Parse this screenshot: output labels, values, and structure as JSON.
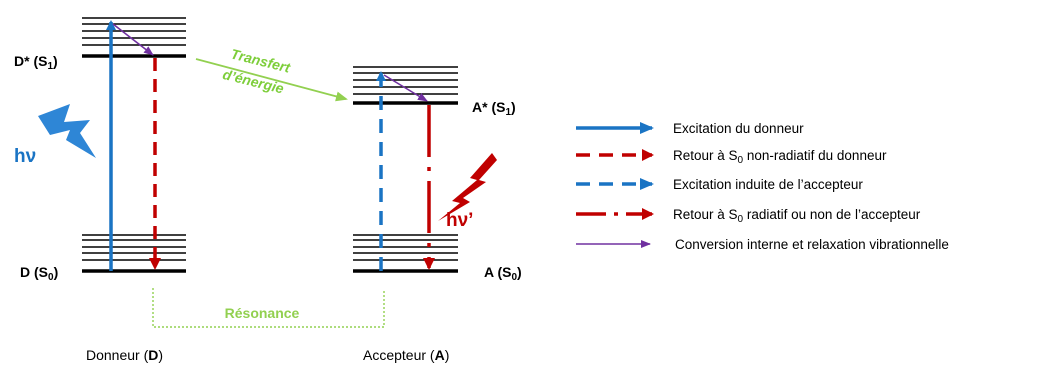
{
  "colors": {
    "blue": "#1a74c4",
    "red": "#c00000",
    "purple": "#7030a0",
    "green": "#92d050",
    "black": "#000000"
  },
  "donor": {
    "excited_label": {
      "main": "D* (S",
      "sub": "1",
      "end": ")"
    },
    "ground_label": {
      "main": "D (S",
      "sub": "0",
      "end": ")"
    },
    "caption": {
      "pre": "Donneur (",
      "bold": "D",
      "post": ")"
    }
  },
  "acceptor": {
    "excited_label": {
      "main": "A* (S",
      "sub": "1",
      "end": ")"
    },
    "ground_label": {
      "main": "A (S",
      "sub": "0",
      "end": ")"
    },
    "caption": {
      "pre": "Accepteur (",
      "bold": "A",
      "post": ")"
    }
  },
  "transfer_label_1": "Transfert",
  "transfer_label_2": "d’énergie",
  "resonance_label": "Résonance",
  "hv_absorb": "hν",
  "hv_emit": "hν’",
  "legend": {
    "item1": "Excitation du donneur",
    "item2": {
      "pre": "Retour à S",
      "sub": "0",
      "post": " non-radiatif du donneur"
    },
    "item3": "Excitation induite de l’accepteur",
    "item4": {
      "pre": "Retour à S",
      "sub": "0",
      "post": " radiatif ou non de l’accepteur"
    },
    "item5": "Conversion interne et relaxation vibrationnelle"
  },
  "icons": {
    "absorb": "lightning-bolt-icon",
    "emit": "lightning-bolt-icon"
  }
}
